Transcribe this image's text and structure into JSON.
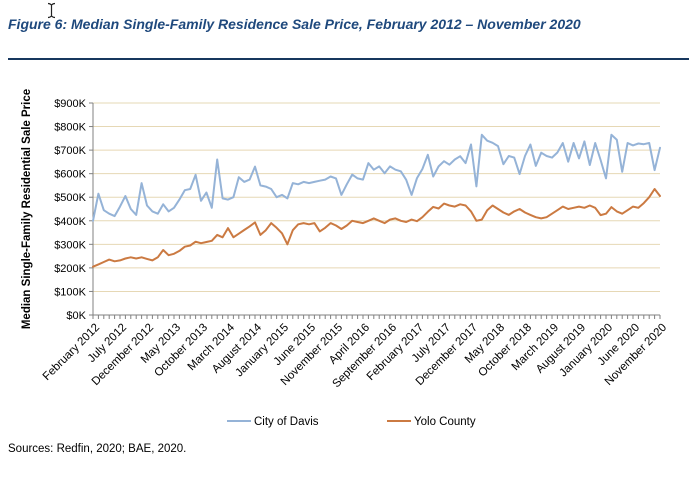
{
  "figure": {
    "title": "Figure 6: Median Single-Family Residence Sale Price, February 2012 – November 2020",
    "sources": "Sources: Redfin, 2020; BAE, 2020."
  },
  "icons": {
    "text_cursor": "I-beam"
  },
  "colors": {
    "title": "#1F497D",
    "title_rule": "#17375E",
    "davis_line": "#95B3D7",
    "yolo_line": "#CB7A42",
    "gridline": "#E6D8B5",
    "axis": "#808080",
    "text": "#000000"
  },
  "chart_data": {
    "type": "line",
    "title": "",
    "xlabel": "",
    "ylabel": "Median Single-Family Residential Sale Price",
    "units": "USD thousands",
    "frequency": "monthly",
    "x_start": "February 2012",
    "x_end": "November 2020",
    "ylim": [
      0,
      900
    ],
    "grid": "horizontal",
    "legend_position": "bottom",
    "y_tick_labels": [
      "$0K",
      "$100K",
      "$200K",
      "$300K",
      "$400K",
      "$500K",
      "$600K",
      "$700K",
      "$800K",
      "$900K"
    ],
    "x_tick_labels": [
      "February 2012",
      "July 2012",
      "December 2012",
      "May 2013",
      "October 2013",
      "March 2014",
      "August 2014",
      "January 2015",
      "June 2015",
      "November 2015",
      "April 2016",
      "September 2016",
      "February 2017",
      "July 2017",
      "December 2017",
      "May 2018",
      "October 2018",
      "March 2019",
      "August 2019",
      "January 2020",
      "June 2020",
      "November 2020"
    ],
    "x_tick_month_interval": 5,
    "series": [
      {
        "name": "City of Davis",
        "color": "#95B3D7",
        "values": [
          400,
          515,
          445,
          430,
          420,
          460,
          505,
          450,
          425,
          560,
          465,
          440,
          430,
          470,
          440,
          455,
          490,
          530,
          535,
          595,
          485,
          520,
          455,
          660,
          495,
          490,
          500,
          585,
          565,
          575,
          630,
          550,
          545,
          535,
          500,
          510,
          495,
          560,
          555,
          565,
          560,
          565,
          570,
          575,
          588,
          580,
          510,
          555,
          596,
          580,
          575,
          645,
          617,
          631,
          602,
          631,
          617,
          610,
          574,
          510,
          581,
          620,
          680,
          588,
          631,
          653,
          638,
          660,
          674,
          645,
          724,
          546,
          765,
          740,
          731,
          717,
          640,
          675,
          668,
          598,
          675,
          724,
          633,
          689,
          675,
          668,
          690,
          730,
          651,
          730,
          665,
          737,
          637,
          730,
          658,
          580,
          765,
          744,
          608,
          730,
          720,
          728,
          725,
          730,
          615,
          710
        ]
      },
      {
        "name": "Yolo County",
        "color": "#CB7A42",
        "values": [
          205,
          215,
          225,
          235,
          228,
          232,
          240,
          245,
          240,
          245,
          238,
          232,
          245,
          276,
          254,
          260,
          272,
          290,
          295,
          311,
          305,
          310,
          315,
          340,
          330,
          369,
          330,
          345,
          361,
          376,
          393,
          340,
          360,
          390,
          370,
          347,
          300,
          360,
          385,
          390,
          385,
          390,
          355,
          370,
          390,
          380,
          365,
          380,
          400,
          395,
          390,
          400,
          410,
          400,
          390,
          405,
          410,
          400,
          395,
          405,
          398,
          415,
          438,
          459,
          452,
          473,
          465,
          460,
          470,
          465,
          440,
          400,
          405,
          445,
          465,
          450,
          435,
          425,
          440,
          450,
          435,
          425,
          415,
          410,
          415,
          430,
          445,
          460,
          450,
          455,
          460,
          455,
          465,
          455,
          424,
          430,
          458,
          440,
          430,
          445,
          460,
          455,
          475,
          500,
          535,
          505
        ]
      }
    ]
  }
}
